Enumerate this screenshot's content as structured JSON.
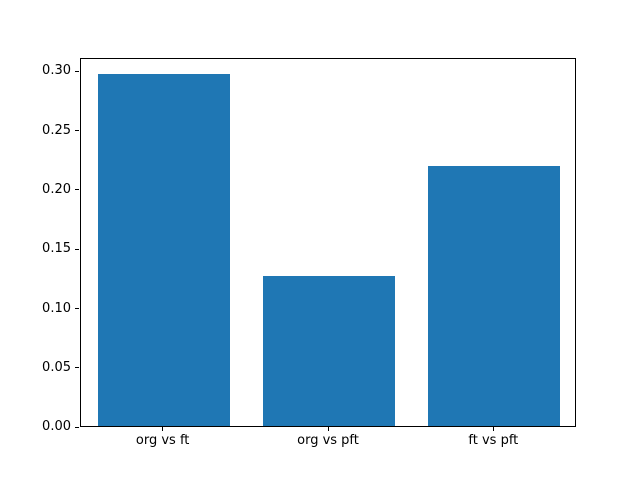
{
  "chart_data": {
    "type": "bar",
    "categories": [
      "org vs ft",
      "org vs pft",
      "ft vs pft"
    ],
    "values": [
      0.297,
      0.127,
      0.219
    ],
    "title": "",
    "xlabel": "",
    "ylabel": "",
    "ylim": [
      0,
      0.3115
    ],
    "yticks": [
      0.0,
      0.05,
      0.1,
      0.15,
      0.2,
      0.25,
      0.3
    ],
    "ytick_labels": [
      "0.00",
      "0.05",
      "0.10",
      "0.15",
      "0.20",
      "0.25",
      "0.30"
    ],
    "bar_color": "#1f77b4",
    "axis_color": "#000000",
    "background_color": "#ffffff",
    "grid": false,
    "legend": null,
    "bar_width_fraction": 0.8
  }
}
